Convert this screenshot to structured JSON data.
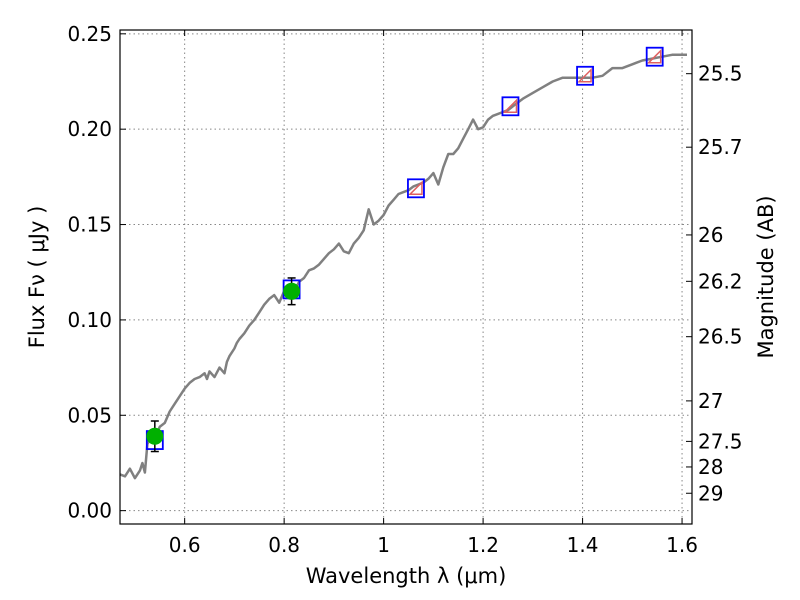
{
  "chart_data": {
    "type": "line",
    "xlabel": "Wavelength  λ (μm)",
    "ylabel": "Flux  Fν  ( μJy )",
    "ylabel_right": "Magnitude (AB)",
    "xlim": [
      0.47,
      1.62
    ],
    "ylim": [
      -0.007,
      0.252
    ],
    "grid": true,
    "x_ticks": [
      {
        "value": 0.6,
        "label": "0.6"
      },
      {
        "value": 0.8,
        "label": "0.8"
      },
      {
        "value": 1.0,
        "label": "1"
      },
      {
        "value": 1.2,
        "label": "1.2"
      },
      {
        "value": 1.4,
        "label": "1.4"
      },
      {
        "value": 1.6,
        "label": "1.6"
      }
    ],
    "y_ticks": [
      {
        "value": 0.0,
        "label": "0.00"
      },
      {
        "value": 0.05,
        "label": "0.05"
      },
      {
        "value": 0.1,
        "label": "0.10"
      },
      {
        "value": 0.15,
        "label": "0.15"
      },
      {
        "value": 0.2,
        "label": "0.20"
      },
      {
        "value": 0.25,
        "label": "0.25"
      }
    ],
    "magnitude_ticks": [
      {
        "value": 25.5,
        "label": "25.5"
      },
      {
        "value": 25.7,
        "label": "25.7"
      },
      {
        "value": 26.0,
        "label": "26"
      },
      {
        "value": 26.2,
        "label": "26.2"
      },
      {
        "value": 26.5,
        "label": "26.5"
      },
      {
        "value": 27.0,
        "label": "27"
      },
      {
        "value": 27.5,
        "label": "27.5"
      },
      {
        "value": 28.0,
        "label": "28"
      },
      {
        "value": 29.0,
        "label": "29"
      }
    ],
    "colors": {
      "spectrum": "#808080",
      "observed": "#00b000",
      "model_box": "#0000ff",
      "upper_limit": "#e06060",
      "grid": "#888888"
    },
    "series": [
      {
        "name": "spectrum",
        "x": [
          0.47,
          0.48,
          0.49,
          0.5,
          0.51,
          0.515,
          0.52,
          0.525,
          0.53,
          0.535,
          0.54,
          0.55,
          0.56,
          0.57,
          0.58,
          0.59,
          0.6,
          0.61,
          0.62,
          0.63,
          0.64,
          0.645,
          0.65,
          0.66,
          0.67,
          0.68,
          0.685,
          0.69,
          0.7,
          0.705,
          0.71,
          0.72,
          0.73,
          0.74,
          0.75,
          0.76,
          0.77,
          0.78,
          0.79,
          0.8,
          0.81,
          0.82,
          0.83,
          0.84,
          0.85,
          0.86,
          0.87,
          0.88,
          0.89,
          0.9,
          0.91,
          0.92,
          0.93,
          0.94,
          0.95,
          0.96,
          0.97,
          0.98,
          0.99,
          1.0,
          1.01,
          1.02,
          1.03,
          1.04,
          1.05,
          1.06,
          1.07,
          1.08,
          1.09,
          1.1,
          1.11,
          1.12,
          1.13,
          1.14,
          1.15,
          1.16,
          1.17,
          1.18,
          1.19,
          1.2,
          1.21,
          1.22,
          1.23,
          1.24,
          1.25,
          1.26,
          1.27,
          1.28,
          1.3,
          1.32,
          1.34,
          1.36,
          1.38,
          1.4,
          1.42,
          1.44,
          1.46,
          1.48,
          1.5,
          1.52,
          1.54,
          1.56,
          1.58,
          1.6,
          1.61
        ],
        "y": [
          0.019,
          0.018,
          0.022,
          0.017,
          0.021,
          0.025,
          0.02,
          0.035,
          0.037,
          0.036,
          0.038,
          0.044,
          0.046,
          0.052,
          0.056,
          0.06,
          0.064,
          0.067,
          0.069,
          0.07,
          0.072,
          0.069,
          0.073,
          0.07,
          0.075,
          0.072,
          0.078,
          0.081,
          0.085,
          0.088,
          0.09,
          0.093,
          0.097,
          0.1,
          0.104,
          0.108,
          0.111,
          0.113,
          0.109,
          0.115,
          0.117,
          0.115,
          0.12,
          0.122,
          0.126,
          0.127,
          0.129,
          0.132,
          0.135,
          0.137,
          0.14,
          0.136,
          0.135,
          0.14,
          0.143,
          0.147,
          0.158,
          0.15,
          0.152,
          0.155,
          0.16,
          0.163,
          0.166,
          0.167,
          0.168,
          0.17,
          0.171,
          0.172,
          0.174,
          0.177,
          0.171,
          0.18,
          0.187,
          0.187,
          0.19,
          0.195,
          0.2,
          0.205,
          0.2,
          0.201,
          0.205,
          0.207,
          0.208,
          0.209,
          0.21,
          0.212,
          0.214,
          0.216,
          0.219,
          0.222,
          0.225,
          0.227,
          0.227,
          0.227,
          0.227,
          0.228,
          0.232,
          0.232,
          0.234,
          0.236,
          0.237,
          0.238,
          0.239,
          0.239,
          0.239
        ]
      },
      {
        "name": "observed",
        "points": [
          {
            "x": 0.54,
            "y": 0.039,
            "err": 0.008
          },
          {
            "x": 0.815,
            "y": 0.115,
            "err": 0.007
          }
        ]
      },
      {
        "name": "model_photometry",
        "points": [
          {
            "x": 0.54,
            "y": 0.037
          },
          {
            "x": 0.815,
            "y": 0.116
          },
          {
            "x": 1.065,
            "y": 0.169
          },
          {
            "x": 1.255,
            "y": 0.212
          },
          {
            "x": 1.405,
            "y": 0.228
          },
          {
            "x": 1.545,
            "y": 0.238
          }
        ]
      },
      {
        "name": "upper_limits",
        "points": [
          {
            "x": 1.065,
            "y": 0.169
          },
          {
            "x": 1.255,
            "y": 0.212
          },
          {
            "x": 1.405,
            "y": 0.228
          },
          {
            "x": 1.545,
            "y": 0.238
          }
        ]
      }
    ]
  }
}
